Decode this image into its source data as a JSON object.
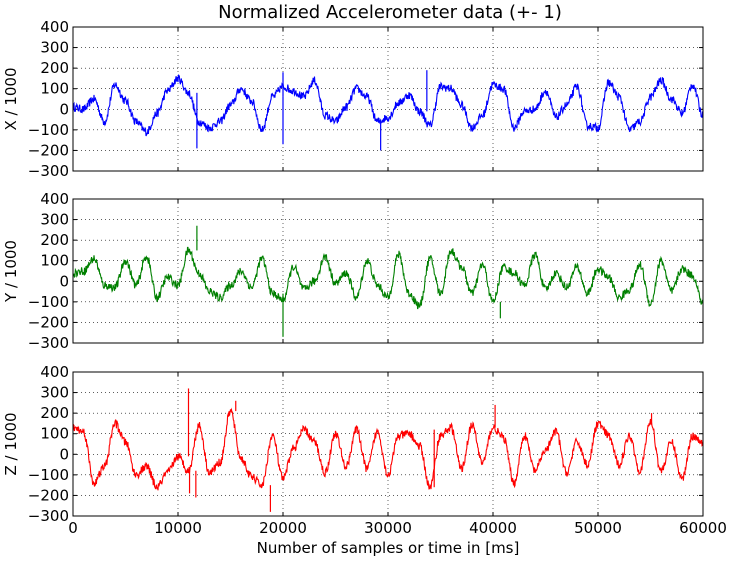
{
  "chart_data": {
    "title": "Normalized Accelerometer data (+- 1)",
    "xlabel": "Number of samples or time in [ms]",
    "xlim": [
      0,
      60000
    ],
    "xticks": [
      "0",
      "10000",
      "20000",
      "30000",
      "40000",
      "50000",
      "60000"
    ],
    "ylim": [
      -300,
      400
    ],
    "yticks": [
      "−300",
      "−200",
      "−100",
      "0",
      "100",
      "200",
      "300",
      "400"
    ],
    "grid": true,
    "grid_style": "dotted",
    "type": "line",
    "subplots": [
      {
        "ylabel": "X / 1000",
        "color": "#0000ff",
        "x": [
          0,
          1000,
          2000,
          3000,
          4000,
          5000,
          6000,
          7000,
          8000,
          9000,
          10000,
          11000,
          12000,
          13000,
          14000,
          15000,
          16000,
          17000,
          18000,
          19000,
          20000,
          21000,
          22000,
          23000,
          24000,
          25000,
          26000,
          27000,
          28000,
          29000,
          30000,
          31000,
          32000,
          33000,
          34000,
          35000,
          36000,
          37000,
          38000,
          39000,
          40000,
          41000,
          42000,
          43000,
          44000,
          45000,
          46000,
          47000,
          48000,
          49000,
          50000,
          51000,
          52000,
          53000,
          54000,
          55000,
          56000,
          57000,
          58000,
          59000,
          60000
        ],
        "values": [
          10,
          0,
          50,
          -60,
          120,
          40,
          -60,
          -110,
          -20,
          90,
          150,
          80,
          -60,
          -90,
          -60,
          20,
          100,
          40,
          -100,
          60,
          110,
          90,
          60,
          140,
          -30,
          -60,
          10,
          100,
          60,
          -60,
          -40,
          30,
          70,
          -10,
          -80,
          110,
          100,
          20,
          -90,
          -30,
          120,
          100,
          -90,
          -10,
          0,
          90,
          -40,
          20,
          110,
          -80,
          -90,
          130,
          60,
          -100,
          -60,
          60,
          140,
          50,
          -20,
          120,
          -30
        ]
      },
      {
        "ylabel": "Y / 1000",
        "color": "#008000",
        "x": [
          0,
          1000,
          2000,
          3000,
          4000,
          5000,
          6000,
          7000,
          8000,
          9000,
          10000,
          11000,
          12000,
          13000,
          14000,
          15000,
          16000,
          17000,
          18000,
          19000,
          20000,
          21000,
          22000,
          23000,
          24000,
          25000,
          26000,
          27000,
          28000,
          29000,
          30000,
          31000,
          32000,
          33000,
          34000,
          35000,
          36000,
          37000,
          38000,
          39000,
          40000,
          41000,
          42000,
          43000,
          44000,
          45000,
          46000,
          47000,
          48000,
          49000,
          50000,
          51000,
          52000,
          53000,
          54000,
          55000,
          56000,
          57000,
          58000,
          59000,
          60000
        ],
        "values": [
          40,
          50,
          110,
          -20,
          -30,
          100,
          -20,
          120,
          -80,
          20,
          -20,
          150,
          40,
          -50,
          -80,
          -20,
          50,
          -30,
          110,
          -60,
          -90,
          70,
          -40,
          0,
          120,
          -10,
          40,
          -80,
          100,
          -20,
          -80,
          130,
          -60,
          -120,
          110,
          -60,
          150,
          70,
          -60,
          80,
          -100,
          70,
          40,
          -20,
          130,
          -40,
          40,
          -30,
          70,
          -60,
          60,
          20,
          -80,
          -40,
          80,
          -110,
          100,
          -50,
          60,
          30,
          -110
        ]
      },
      {
        "ylabel": "Z / 1000",
        "color": "#ff0000",
        "x": [
          0,
          1000,
          2000,
          3000,
          4000,
          5000,
          6000,
          7000,
          8000,
          9000,
          10000,
          11000,
          12000,
          13000,
          14000,
          15000,
          16000,
          17000,
          18000,
          19000,
          20000,
          21000,
          22000,
          23000,
          24000,
          25000,
          26000,
          27000,
          28000,
          29000,
          30000,
          31000,
          32000,
          33000,
          34000,
          35000,
          36000,
          37000,
          38000,
          39000,
          40000,
          41000,
          42000,
          43000,
          44000,
          45000,
          46000,
          47000,
          48000,
          49000,
          50000,
          51000,
          52000,
          53000,
          54000,
          55000,
          56000,
          57000,
          58000,
          59000,
          60000
        ],
        "values": [
          130,
          110,
          -140,
          -60,
          150,
          60,
          -100,
          -60,
          -160,
          -90,
          -10,
          -80,
          140,
          -90,
          -40,
          210,
          -20,
          -110,
          -150,
          90,
          -120,
          30,
          120,
          60,
          -90,
          100,
          -60,
          120,
          -70,
          110,
          -100,
          90,
          100,
          40,
          -160,
          90,
          130,
          -70,
          140,
          -40,
          130,
          80,
          -140,
          90,
          -80,
          20,
          110,
          -90,
          60,
          -50,
          150,
          90,
          -50,
          90,
          -80,
          160,
          -80,
          60,
          -120,
          90,
          60
        ]
      }
    ],
    "spikes": [
      [
        [
          11800,
          -190
        ],
        [
          20000,
          -170
        ],
        [
          29300,
          -200
        ],
        [
          33700,
          190
        ],
        [
          20000,
          180
        ]
      ],
      [
        [
          11800,
          270
        ],
        [
          20000,
          -270
        ],
        [
          40700,
          -180
        ]
      ],
      [
        [
          11000,
          320
        ],
        [
          11100,
          -190
        ],
        [
          11700,
          -210
        ],
        [
          18800,
          -280
        ],
        [
          15500,
          260
        ],
        [
          34400,
          120
        ],
        [
          40200,
          240
        ],
        [
          55100,
          200
        ]
      ]
    ]
  }
}
